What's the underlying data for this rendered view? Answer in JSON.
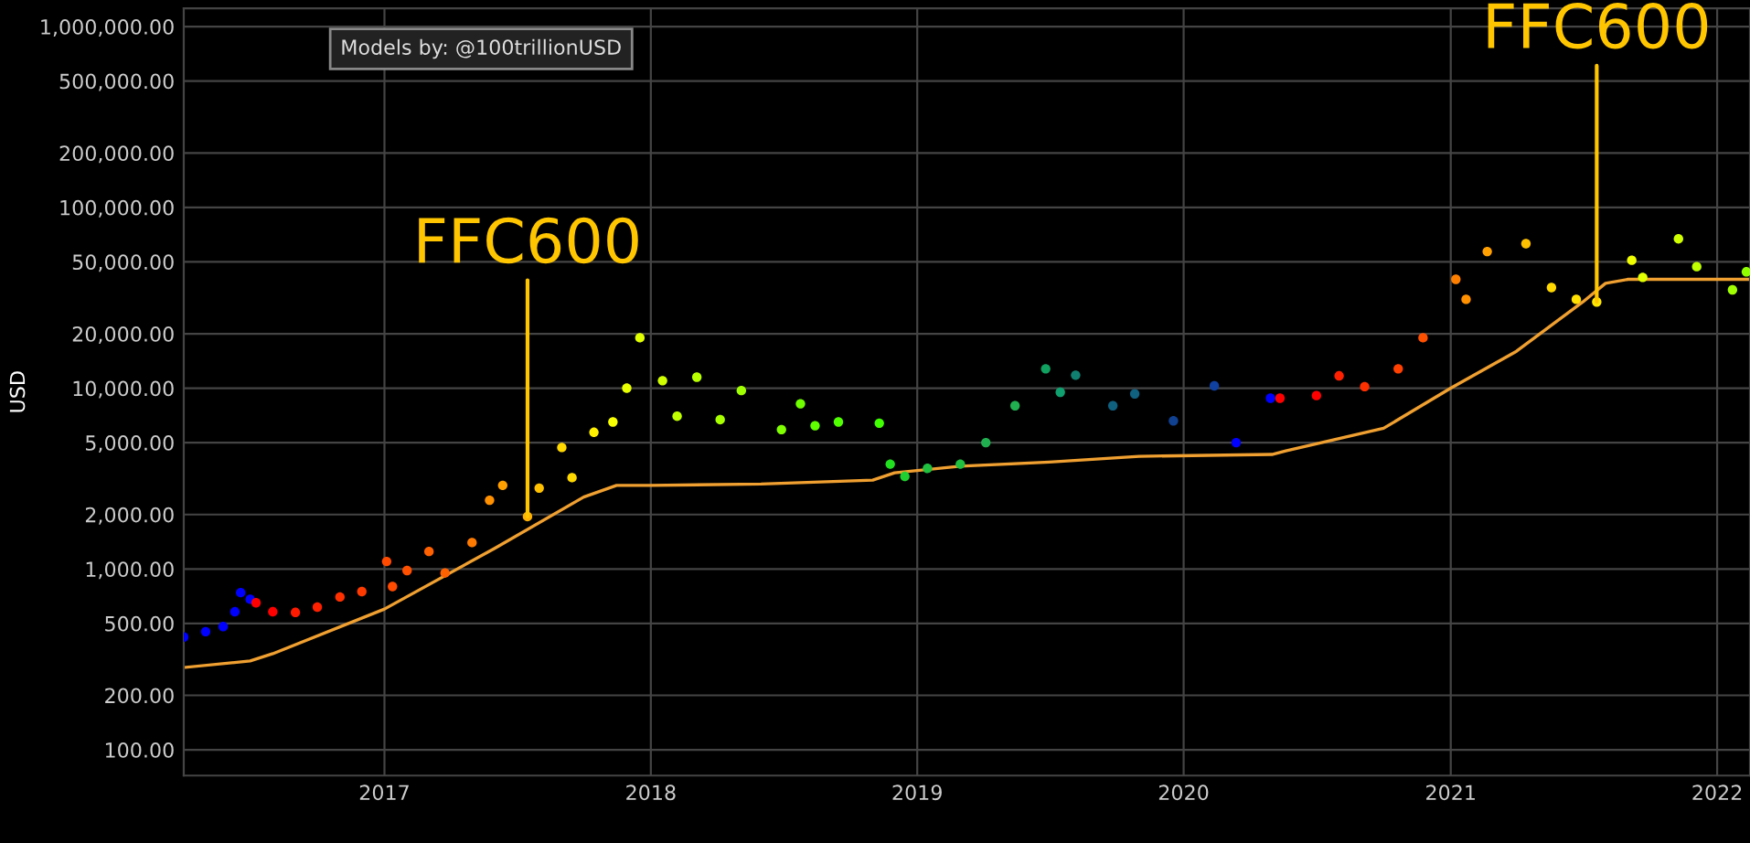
{
  "chart_data": {
    "type": "scatter",
    "ylabel": "USD",
    "log": "y",
    "grid": true,
    "xlim": [
      "2016-04-01",
      "2022-02-15"
    ],
    "xticks": [
      "2017",
      "2018",
      "2019",
      "2020",
      "2021",
      "2022"
    ],
    "ylim": [
      72,
      1260000
    ],
    "yticks": [
      {
        "value": 100,
        "label": "100.00"
      },
      {
        "value": 200,
        "label": "200.00"
      },
      {
        "value": 500,
        "label": "500.00"
      },
      {
        "value": 1000,
        "label": "1,000.00"
      },
      {
        "value": 2000,
        "label": "2,000.00"
      },
      {
        "value": 5000,
        "label": "5,000.00"
      },
      {
        "value": 10000,
        "label": "10,000.00"
      },
      {
        "value": 20000,
        "label": "20,000.00"
      },
      {
        "value": 50000,
        "label": "50,000.00"
      },
      {
        "value": 100000,
        "label": "100,000.00"
      },
      {
        "value": 200000,
        "label": "200,000.00"
      },
      {
        "value": 500000,
        "label": "500,000.00"
      },
      {
        "value": 1000000,
        "label": "1,000,000.00"
      }
    ],
    "series": [
      {
        "marker": "circle",
        "x": [
          "2016-04-01",
          "2016-05-01",
          "2016-05-25",
          "2016-06-10",
          "2016-06-18",
          "2016-07-01",
          "2016-07-09",
          "2016-08-01",
          "2016-09-01",
          "2016-10-01",
          "2016-11-01",
          "2016-12-01",
          "2017-01-04",
          "2017-01-12",
          "2017-02-01",
          "2017-03-03",
          "2017-03-25",
          "2017-05-01",
          "2017-05-25",
          "2017-06-12",
          "2017-07-16",
          "2017-08-01",
          "2017-09-01",
          "2017-09-15",
          "2017-10-15",
          "2017-11-10",
          "2017-11-29",
          "2017-12-17",
          "2018-01-17",
          "2018-02-06",
          "2018-03-05",
          "2018-04-06",
          "2018-05-05",
          "2018-06-29",
          "2018-07-25",
          "2018-08-14",
          "2018-09-15",
          "2018-11-10",
          "2018-11-25",
          "2018-12-15",
          "2019-01-15",
          "2019-03-01",
          "2019-04-05",
          "2019-05-15",
          "2019-06-26",
          "2019-07-16",
          "2019-08-06",
          "2019-09-26",
          "2019-10-26",
          "2019-12-18",
          "2020-02-12",
          "2020-03-13",
          "2020-04-29",
          "2020-05-12",
          "2020-07-01",
          "2020-08-01",
          "2020-09-05",
          "2020-10-21",
          "2020-11-24",
          "2021-01-08",
          "2021-01-22",
          "2021-02-20",
          "2021-04-14",
          "2021-05-19",
          "2021-06-22",
          "2021-07-20",
          "2021-09-06",
          "2021-09-21",
          "2021-11-09",
          "2021-12-04",
          "2022-01-22",
          "2022-02-10"
        ],
        "values": [
          420,
          450,
          480,
          580,
          740,
          680,
          650,
          580,
          575,
          615,
          700,
          750,
          1100,
          800,
          980,
          1250,
          950,
          1400,
          2400,
          2900,
          1950,
          2800,
          4700,
          3200,
          5700,
          6500,
          10000,
          19000,
          11000,
          7000,
          11500,
          6700,
          9700,
          5900,
          8200,
          6200,
          6500,
          6400,
          3800,
          3250,
          3600,
          3800,
          5000,
          8000,
          12800,
          9500,
          11800,
          8000,
          9300,
          6600,
          10300,
          5000,
          8800,
          8800,
          9100,
          11700,
          10200,
          12800,
          19000,
          40000,
          31000,
          57000,
          63000,
          36000,
          31000,
          30000,
          51000,
          41000,
          67000,
          47000,
          35000,
          44000
        ],
        "colors": [
          "#0000ff",
          "#0000ff",
          "#0000ff",
          "#0000ff",
          "#0000ff",
          "#0000ff",
          "#ff0000",
          "#ff0000",
          "#ff1a00",
          "#ff2000",
          "#ff3000",
          "#ff3a00",
          "#ff4a00",
          "#ff4a00",
          "#ff5000",
          "#ff6000",
          "#ff6000",
          "#ff7a00",
          "#ff9000",
          "#ffa000",
          "#ffb000",
          "#ffc000",
          "#ffd800",
          "#ffd800",
          "#fff000",
          "#f8ff00",
          "#e8ff00",
          "#e0ff00",
          "#d0ff00",
          "#c0ff00",
          "#b8ff00",
          "#a8ff00",
          "#a0ff00",
          "#80ff00",
          "#70ff00",
          "#60ff00",
          "#50ff00",
          "#40ff00",
          "#20e020",
          "#20d030",
          "#20c040",
          "#20c040",
          "#20b050",
          "#20b050",
          "#10a060",
          "#10a070",
          "#108070",
          "#106080",
          "#106080",
          "#104090",
          "#1040a0",
          "#0000ff",
          "#0000ff",
          "#ff0000",
          "#ff0000",
          "#ff2000",
          "#ff3000",
          "#ff4000",
          "#ff5000",
          "#ff8000",
          "#ff9000",
          "#ffa000",
          "#ffc000",
          "#ffd800",
          "#ffe000",
          "#ffe800",
          "#f0ff00",
          "#e0ff00",
          "#d0ff00",
          "#c0ff00",
          "#a0ff00",
          "#90ff00"
        ]
      },
      {
        "type": "line",
        "color": "#f0a030",
        "x": [
          "2016-04-01",
          "2016-07-01",
          "2016-08-01",
          "2017-01-01",
          "2017-06-01",
          "2017-10-01",
          "2017-11-15",
          "2018-01-01",
          "2018-06-01",
          "2018-11-01",
          "2018-12-01",
          "2019-03-01",
          "2019-07-01",
          "2019-11-01",
          "2020-05-01",
          "2020-05-20",
          "2020-10-01",
          "2021-01-01",
          "2021-04-01",
          "2021-07-01",
          "2021-08-01",
          "2021-09-01",
          "2022-02-15"
        ],
        "values": [
          285,
          310,
          340,
          600,
          1300,
          2500,
          2900,
          2900,
          2950,
          3100,
          3400,
          3700,
          3900,
          4200,
          4300,
          4500,
          6000,
          10000,
          16000,
          30000,
          38000,
          40000,
          40000
        ]
      }
    ],
    "annotations": [
      "Models by: @100trillionUSD",
      {
        "text": "FFC600",
        "x": "2017-07-16",
        "y": 1950
      },
      {
        "text": "FFC600",
        "x": "2021-07-20",
        "y": 30000
      }
    ]
  }
}
